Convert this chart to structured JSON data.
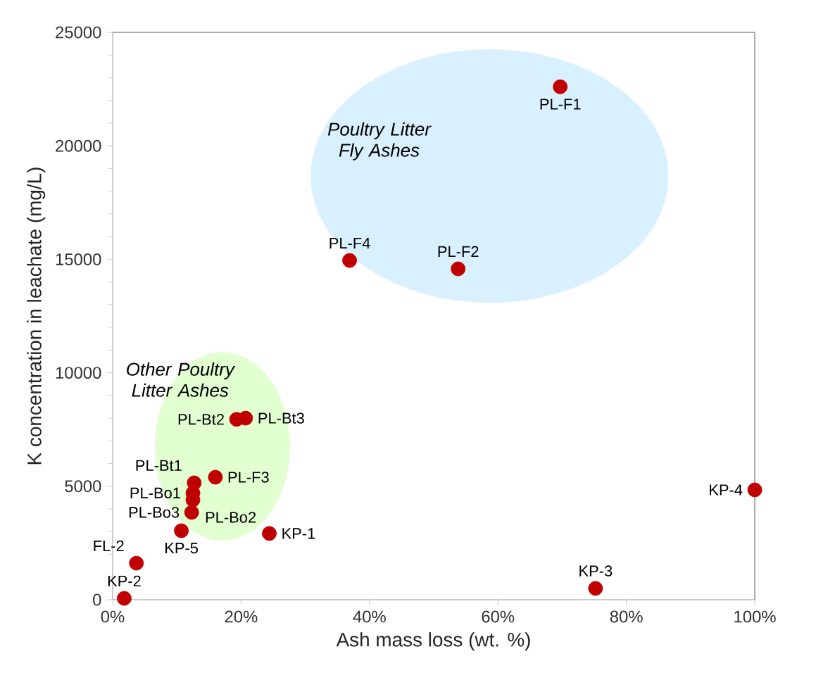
{
  "chart_data": {
    "type": "scatter",
    "xlabel": "Ash mass loss (wt. %)",
    "ylabel": "K concentration in leachate (mg/L)",
    "xlim": [
      0,
      100
    ],
    "xticks": [
      {
        "value": 0,
        "label": "0%"
      },
      {
        "value": 20,
        "label": "20%"
      },
      {
        "value": 40,
        "label": "40%"
      },
      {
        "value": 60,
        "label": "60%"
      },
      {
        "value": 80,
        "label": "80%"
      },
      {
        "value": 100,
        "label": "100%"
      }
    ],
    "ylim": [
      0,
      25000
    ],
    "yticks": [
      0,
      5000,
      10000,
      15000,
      20000,
      25000
    ],
    "marker": "circle",
    "grid": false,
    "legend": false,
    "annotations": [
      "*Poultry Litter Fly Ashes*",
      "*Other Poultry Litter Ashes*"
    ],
    "series": [
      {
        "name": "PL-F1",
        "color": "#c00000",
        "x": [
          69.7
        ],
        "values": [
          22600
        ]
      },
      {
        "name": "PL-F4",
        "color": "#c00000",
        "x": [
          36.9
        ],
        "values": [
          14950
        ]
      },
      {
        "name": "PL-F2",
        "color": "#c00000",
        "x": [
          53.8
        ],
        "values": [
          14580
        ]
      },
      {
        "name": "PL-Bt2",
        "color": "#c00000",
        "x": [
          19.3
        ],
        "values": [
          7950
        ]
      },
      {
        "name": "PL-Bt3",
        "color": "#c00000",
        "x": [
          20.7
        ],
        "values": [
          8000
        ]
      },
      {
        "name": "PL-F3",
        "color": "#c00000",
        "x": [
          16
        ],
        "values": [
          5400
        ]
      },
      {
        "name": "PL-Bt1",
        "color": "#c00000",
        "x": [
          12.7
        ],
        "values": [
          5150
        ]
      },
      {
        "name": "PL-Bo1",
        "color": "#c00000",
        "x": [
          12.5
        ],
        "values": [
          4700
        ]
      },
      {
        "name": "PL-Bo2",
        "color": "#c00000",
        "x": [
          12.5
        ],
        "values": [
          4400
        ]
      },
      {
        "name": "PL-Bo3",
        "color": "#c00000",
        "x": [
          12.3
        ],
        "values": [
          3850
        ]
      },
      {
        "name": "KP-5",
        "color": "#c00000",
        "x": [
          10.7
        ],
        "values": [
          3040
        ]
      },
      {
        "name": "KP-1",
        "color": "#c00000",
        "x": [
          24.4
        ],
        "values": [
          2920
        ]
      },
      {
        "name": "FL-2",
        "color": "#c00000",
        "x": [
          3.7
        ],
        "values": [
          1610
        ]
      },
      {
        "name": "KP-2",
        "color": "#c00000",
        "x": [
          1.8
        ],
        "values": [
          60
        ]
      },
      {
        "name": "KP-3",
        "color": "#c00000",
        "x": [
          75.2
        ],
        "values": [
          500
        ]
      },
      {
        "name": "KP-4",
        "color": "#c00000",
        "x": [
          100
        ],
        "values": [
          4840
        ]
      }
    ]
  }
}
